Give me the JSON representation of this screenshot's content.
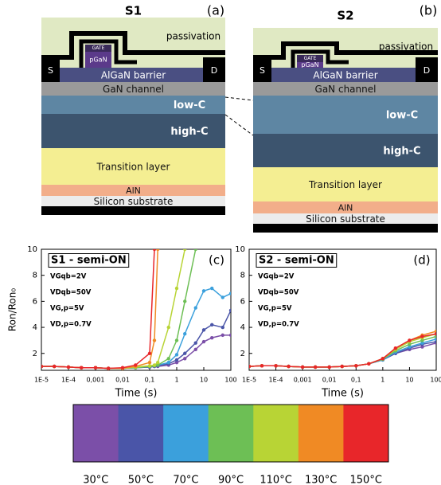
{
  "diagrams": [
    {
      "title": "S1",
      "tag": "(a)",
      "passivation": "passivation",
      "gate": "GATE",
      "pgan": "pGaN",
      "source": "S",
      "drain": "D",
      "barrier": "AlGaN barrier",
      "channel": "GaN channel",
      "low_c": "low-C",
      "high_c": "high-C",
      "transition": "Transition layer",
      "aln": "AlN",
      "substrate": "Silicon substrate"
    },
    {
      "title": "S2",
      "tag": "(b)",
      "passivation": "passivation",
      "gate": "GATE",
      "pgan": "pGaN",
      "source": "S",
      "drain": "D",
      "barrier": "AlGaN barrier",
      "channel": "GaN channel",
      "low_c": "low-C",
      "high_c": "high-C",
      "transition": "Transition layer",
      "aln": "AlN",
      "substrate": "Silicon substrate"
    }
  ],
  "chart_data": [
    {
      "type": "line",
      "title": "S1 - semi-ON",
      "panel_label": "(c)",
      "annotations": [
        "VGqb=2V",
        "VDqb=50V",
        "VG,p=5V",
        "VD,p=0.7V"
      ],
      "x_label": "Time (s)",
      "y_label": "Ron/Ron₀",
      "log_x": true,
      "xlim": [
        1e-05,
        100
      ],
      "ylim": [
        0.7,
        10
      ],
      "xticks": [
        {
          "value": 1e-05,
          "label": "1E-5"
        },
        {
          "value": 0.0001,
          "label": "1E-4"
        },
        {
          "value": 0.001,
          "label": "0,001"
        },
        {
          "value": 0.01,
          "label": "0,01"
        },
        {
          "value": 0.1,
          "label": "0,1"
        },
        1,
        10,
        100
      ],
      "yticks": [
        2,
        4,
        6,
        8,
        10
      ],
      "x": [
        1e-05,
        3e-05,
        0.0001,
        0.0003,
        0.001,
        0.003,
        0.01,
        0.03,
        0.1,
        0.15,
        0.2,
        0.5,
        1,
        2,
        5,
        10,
        20,
        50,
        100
      ],
      "series": [
        {
          "name": "30°C",
          "color": "#7b4fa8",
          "values": [
            1,
            1,
            0.95,
            0.9,
            0.9,
            0.85,
            0.85,
            0.9,
            0.95,
            1.0,
            1.0,
            1.1,
            1.3,
            1.6,
            2.3,
            2.9,
            3.2,
            3.4,
            3.4
          ]
        },
        {
          "name": "50°C",
          "color": "#4a55a8",
          "values": [
            1,
            1,
            0.95,
            0.9,
            0.9,
            0.85,
            0.85,
            0.9,
            0.95,
            1.0,
            1.05,
            1.2,
            1.5,
            2.0,
            2.8,
            3.8,
            4.2,
            4.0,
            5.3
          ]
        },
        {
          "name": "70°C",
          "color": "#3ba0dc",
          "values": [
            1,
            1,
            0.95,
            0.9,
            0.9,
            0.85,
            0.85,
            0.9,
            1.0,
            1.05,
            1.1,
            1.3,
            1.9,
            3.5,
            5.5,
            6.8,
            7.0,
            6.3,
            6.6
          ]
        },
        {
          "name": "90°C",
          "color": "#6dbf55",
          "values": [
            1,
            1,
            0.95,
            0.9,
            0.9,
            0.85,
            0.85,
            0.9,
            1.0,
            1.05,
            1.1,
            1.6,
            3.0,
            6.0,
            10,
            null,
            null,
            null,
            null
          ]
        },
        {
          "name": "110°C",
          "color": "#b8d435",
          "values": [
            1,
            1,
            0.95,
            0.9,
            0.9,
            0.85,
            0.85,
            0.95,
            1.05,
            1.1,
            1.3,
            4.0,
            7.0,
            10,
            null,
            null,
            null,
            null,
            null
          ]
        },
        {
          "name": "130°C",
          "color": "#f08a24",
          "values": [
            1,
            1,
            0.95,
            0.9,
            0.9,
            0.85,
            0.85,
            1.0,
            1.3,
            3.0,
            10,
            null,
            null,
            null,
            null,
            null,
            null,
            null,
            null
          ]
        },
        {
          "name": "150°C",
          "color": "#e8262a",
          "values": [
            1,
            1,
            0.95,
            0.9,
            0.9,
            0.85,
            0.9,
            1.1,
            2.0,
            10,
            null,
            null,
            null,
            null,
            null,
            null,
            null,
            null,
            null
          ]
        }
      ]
    },
    {
      "type": "line",
      "title": "S2 - semi-ON",
      "panel_label": "(d)",
      "annotations": [
        "VGqb=2V",
        "VDqb=50V",
        "VG,p=5V",
        "VD,p=0.7V"
      ],
      "x_label": "Time (s)",
      "log_x": true,
      "xlim": [
        1e-05,
        100
      ],
      "ylim": [
        0.7,
        10
      ],
      "xticks": [
        {
          "value": 1e-05,
          "label": "1E-5"
        },
        {
          "value": 0.0001,
          "label": "1E-4"
        },
        {
          "value": 0.001,
          "label": "0,001"
        },
        {
          "value": 0.01,
          "label": "0,01"
        },
        {
          "value": 0.1,
          "label": "0,1"
        },
        1,
        10,
        100
      ],
      "yticks": [
        2,
        4,
        6,
        8,
        10
      ],
      "x": [
        1e-05,
        3e-05,
        0.0001,
        0.0003,
        0.001,
        0.003,
        0.01,
        0.03,
        0.1,
        0.3,
        1,
        3,
        10,
        30,
        100
      ],
      "series": [
        {
          "color": "#7b4fa8",
          "values": [
            1,
            1.05,
            1.05,
            1.0,
            0.95,
            0.95,
            0.95,
            1.0,
            1.05,
            1.2,
            1.5,
            2.0,
            2.3,
            2.5,
            2.8
          ]
        },
        {
          "color": "#4a55a8",
          "values": [
            1,
            1.05,
            1.05,
            1.0,
            0.95,
            0.95,
            0.95,
            1.0,
            1.05,
            1.2,
            1.5,
            2.0,
            2.4,
            2.7,
            2.9
          ]
        },
        {
          "color": "#3ba0dc",
          "values": [
            1,
            1.05,
            1.05,
            1.0,
            0.95,
            0.95,
            0.95,
            1.0,
            1.05,
            1.2,
            1.5,
            2.1,
            2.5,
            2.8,
            3.1
          ]
        },
        {
          "color": "#6dbf55",
          "values": [
            1,
            1.05,
            1.05,
            1.0,
            0.95,
            0.95,
            0.95,
            1.0,
            1.05,
            1.2,
            1.55,
            2.2,
            2.7,
            3.0,
            3.3
          ]
        },
        {
          "color": "#b8d435",
          "values": [
            1,
            1.05,
            1.05,
            1.0,
            0.95,
            0.95,
            0.95,
            1.0,
            1.05,
            1.2,
            1.6,
            2.3,
            2.9,
            3.2,
            3.5
          ]
        },
        {
          "color": "#f08a24",
          "values": [
            1,
            1.05,
            1.05,
            1.0,
            0.95,
            0.95,
            0.95,
            1.0,
            1.05,
            1.2,
            1.6,
            2.4,
            3.0,
            3.4,
            3.7
          ]
        },
        {
          "color": "#e8262a",
          "values": [
            1,
            1.05,
            1.05,
            1.0,
            0.95,
            0.95,
            0.95,
            1.0,
            1.05,
            1.2,
            1.6,
            2.4,
            3.0,
            3.3,
            3.5
          ]
        }
      ]
    }
  ]
}
